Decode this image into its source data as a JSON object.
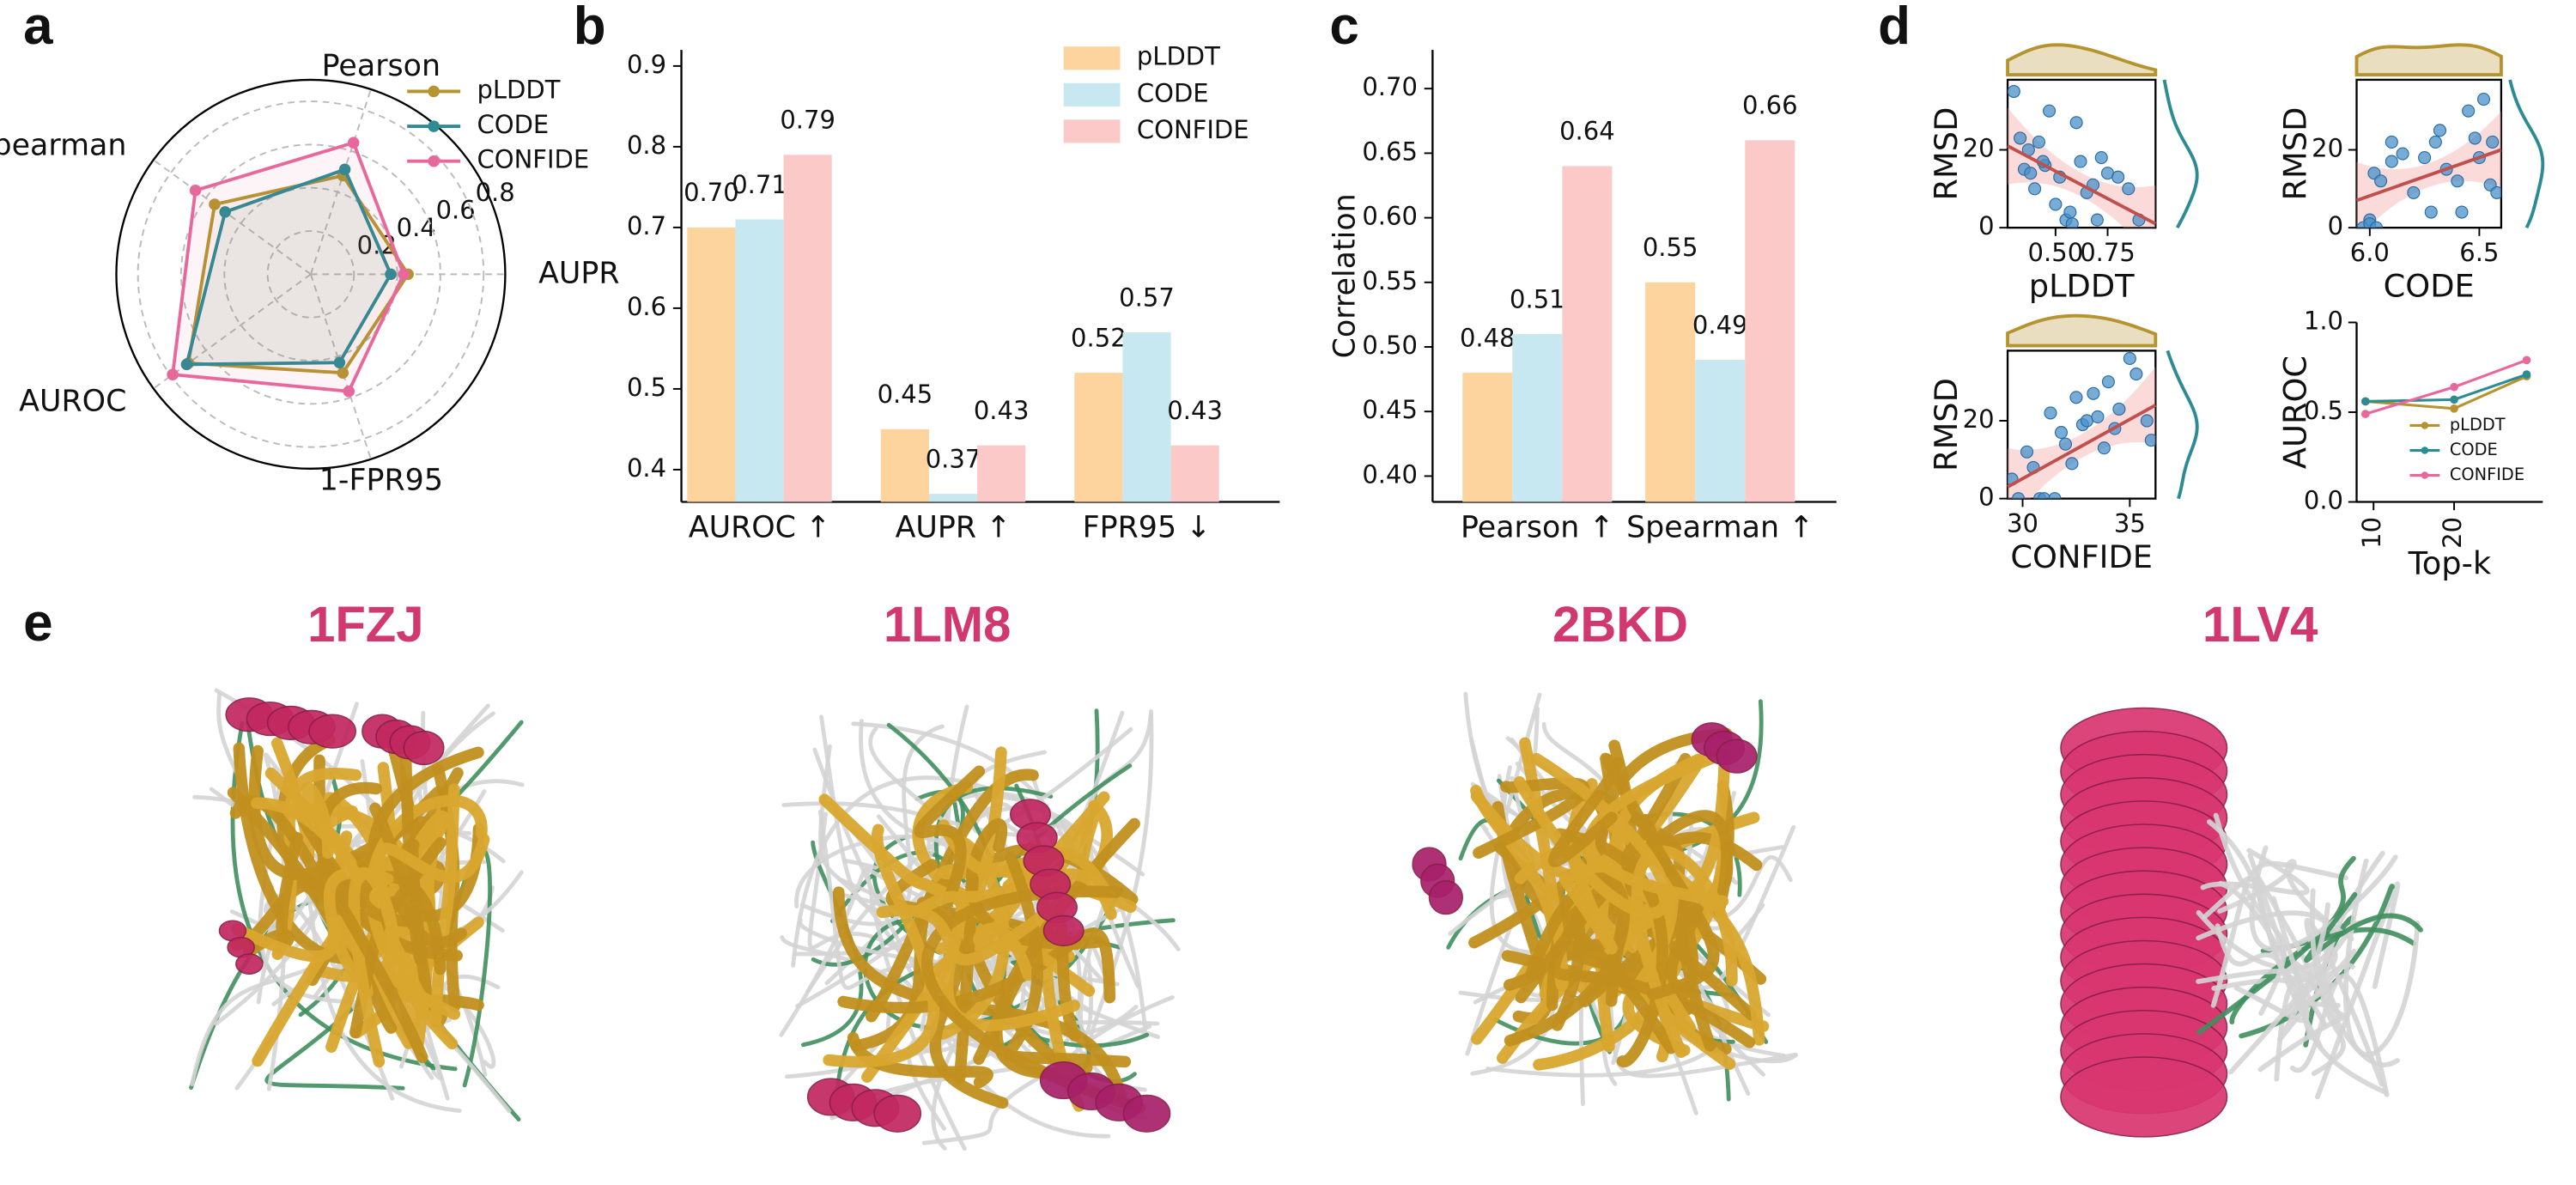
{
  "panels": [
    "a",
    "b",
    "c",
    "d",
    "e"
  ],
  "chart_data": [
    {
      "type": "radar",
      "axes": [
        "Pearson",
        "AUPR",
        "1-FPR95",
        "AUROC",
        "Spearman"
      ],
      "rlim": [
        0,
        0.9
      ],
      "rticks": [
        0.2,
        0.4,
        0.6,
        0.8
      ],
      "grid": true,
      "legend": "upper right",
      "series": [
        {
          "name": "pLDDT",
          "color": "#b5942f",
          "values": [
            0.48,
            0.45,
            0.48,
            0.7,
            0.55
          ]
        },
        {
          "name": "CODE",
          "color": "#2c8b93",
          "values": [
            0.51,
            0.37,
            0.43,
            0.71,
            0.49
          ]
        },
        {
          "name": "CONFIDE",
          "color": "#e9689b",
          "values": [
            0.64,
            0.43,
            0.57,
            0.79,
            0.66
          ]
        }
      ]
    },
    {
      "type": "bar",
      "categories": [
        "AUROC ↑",
        "AUPR ↑",
        "FPR95 ↓"
      ],
      "ylim": [
        0.36,
        0.92
      ],
      "yticks": [
        0.4,
        0.5,
        0.6,
        0.7,
        0.8,
        0.9
      ],
      "legend": "upper right",
      "series": [
        {
          "name": "pLDDT",
          "color": "#fdd49e",
          "values": [
            0.7,
            0.45,
            0.52
          ],
          "value_labels": [
            "0.70",
            "0.45",
            "0.52"
          ]
        },
        {
          "name": "CODE",
          "color": "#c7e8f0",
          "values": [
            0.71,
            0.37,
            0.57
          ],
          "value_labels": [
            "0.71",
            "0.37",
            "0.57"
          ]
        },
        {
          "name": "CONFIDE",
          "color": "#fcc9c9",
          "values": [
            0.79,
            0.43,
            0.43
          ],
          "value_labels": [
            "0.79",
            "0.43",
            "0.43"
          ]
        }
      ]
    },
    {
      "type": "bar",
      "ylabel": "Correlation",
      "categories": [
        "Pearson ↑",
        "Spearman ↑"
      ],
      "ylim": [
        0.38,
        0.73
      ],
      "yticks": [
        {
          "value": 0.4,
          "label": "0.40"
        },
        0.45,
        {
          "value": 0.5,
          "label": "0.50"
        },
        0.55,
        {
          "value": 0.6,
          "label": "0.60"
        },
        0.65,
        {
          "value": 0.7,
          "label": "0.70"
        }
      ],
      "series": [
        {
          "color": "#fdd49e",
          "values": [
            0.48,
            0.55
          ]
        },
        {
          "color": "#c7e8f0",
          "values": [
            0.51,
            0.49
          ]
        },
        {
          "color": "#fcc9c9",
          "values": [
            0.64,
            0.66
          ]
        }
      ]
    },
    {
      "type": "scatter",
      "xlabel": "pLDDT",
      "ylabel": "RMSD",
      "xlim": [
        0.27,
        0.98
      ],
      "ylim": [
        0,
        38
      ],
      "xticks": [
        {
          "value": 0.5,
          "label": "0.50"
        },
        0.75
      ],
      "yticks": [
        0,
        20
      ],
      "color": "#4a90c8",
      "marginal_colors": [
        "#b5942f",
        "#2c8b93"
      ],
      "x": [
        0.3,
        0.33,
        0.35,
        0.37,
        0.38,
        0.4,
        0.42,
        0.45,
        0.47,
        0.5,
        0.52,
        0.55,
        0.57,
        0.6,
        0.62,
        0.65,
        0.68,
        0.7,
        0.72,
        0.75,
        0.8,
        0.85,
        0.9,
        0.44,
        0.58
      ],
      "y": [
        35,
        23,
        15,
        20,
        14,
        10,
        22,
        16,
        30,
        6,
        13,
        2,
        4,
        27,
        17,
        9,
        11,
        2,
        18,
        14,
        13,
        10,
        2,
        17,
        1
      ],
      "trend": {
        "color": "#c0504d",
        "x": [
          0.27,
          0.98
        ],
        "y": [
          21,
          1
        ]
      }
    },
    {
      "type": "scatter",
      "xlabel": "CODE",
      "ylabel": "RMSD",
      "xlim": [
        5.94,
        6.6
      ],
      "ylim": [
        0,
        38
      ],
      "xticks": [
        {
          "value": 6,
          "label": "6.0"
        },
        6.5
      ],
      "yticks": [
        0,
        20
      ],
      "color": "#4a90c8",
      "marginal_colors": [
        "#b5942f",
        "#2c8b93"
      ],
      "x": [
        5.97,
        6.0,
        6.02,
        6.05,
        6.1,
        6.15,
        6.2,
        6.25,
        6.3,
        6.32,
        6.35,
        6.4,
        6.45,
        6.5,
        6.52,
        6.55,
        6.58,
        6.0,
        6.1,
        6.28,
        6.42,
        6.48,
        6.03,
        6.56
      ],
      "y": [
        0,
        2,
        14,
        12,
        17,
        19,
        9,
        18,
        22,
        25,
        15,
        12,
        30,
        18,
        33,
        11,
        9,
        1,
        22,
        4,
        4,
        23,
        0,
        22
      ],
      "trend": {
        "color": "#c0504d",
        "x": [
          5.94,
          6.6
        ],
        "y": [
          7,
          20
        ]
      }
    },
    {
      "type": "scatter",
      "xlabel": "CONFIDE",
      "ylabel": "RMSD",
      "xlim": [
        29.3,
        36.2
      ],
      "ylim": [
        0,
        38
      ],
      "xticks": [
        30,
        35
      ],
      "yticks": [
        0,
        20
      ],
      "color": "#4a90c8",
      "marginal_colors": [
        "#b5942f",
        "#2c8b93"
      ],
      "x": [
        29.5,
        29.8,
        30.2,
        30.5,
        30.8,
        31,
        31.3,
        31.5,
        31.8,
        32,
        32.3,
        32.5,
        32.8,
        33,
        33.3,
        33.5,
        33.8,
        34,
        34.3,
        34.5,
        35,
        35.3,
        35.8,
        36
      ],
      "y": [
        5,
        0,
        12,
        8,
        0,
        0,
        22,
        0,
        17,
        14,
        9,
        26,
        19,
        20,
        27,
        21,
        13,
        30,
        18,
        23,
        36,
        32,
        20,
        15
      ],
      "trend": {
        "color": "#c0504d",
        "x": [
          29.3,
          36.2
        ],
        "y": [
          3,
          24
        ]
      }
    },
    {
      "type": "line",
      "xlabel": "Top-k",
      "ylabel": "AUROC",
      "xlim": [
        7.9,
        31
      ],
      "xticks": [
        10,
        20
      ],
      "ylim": [
        0,
        1
      ],
      "yticks": [
        {
          "value": 0,
          "label": "0.0"
        },
        0.5,
        {
          "value": 1,
          "label": "1.0"
        }
      ],
      "legend": "lower right",
      "x": [
        9,
        20,
        29
      ],
      "series": [
        {
          "name": "pLDDT",
          "color": "#b5942f",
          "values": [
            0.56,
            0.52,
            0.7
          ]
        },
        {
          "name": "CODE",
          "color": "#2c8b93",
          "values": [
            0.56,
            0.57,
            0.71
          ]
        },
        {
          "name": "CONFIDE",
          "color": "#e9689b",
          "values": [
            0.49,
            0.64,
            0.79
          ]
        }
      ]
    }
  ],
  "structures": [
    "1FZJ",
    "1LM8",
    "2BKD",
    "1LV4"
  ]
}
